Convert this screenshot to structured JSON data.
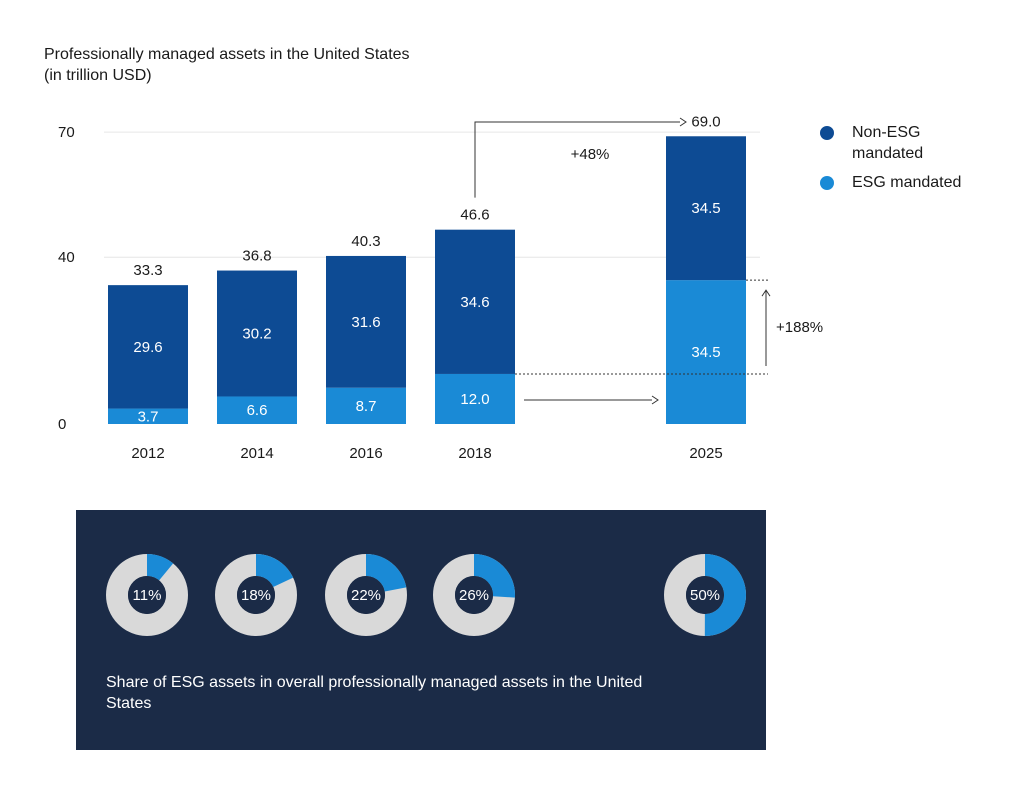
{
  "chart_data": [
    {
      "type": "bar",
      "title": "Professionally managed assets in the United States",
      "subtitle": "(in trillion USD)",
      "categories": [
        "2012",
        "2014",
        "2016",
        "2018",
        "2025"
      ],
      "stacked": true,
      "series": [
        {
          "name": "ESG mandated",
          "values": [
            3.7,
            6.6,
            8.7,
            12.0,
            34.5
          ],
          "color": "#1a8ad6"
        },
        {
          "name": "Non-ESG mandated",
          "values": [
            29.6,
            30.2,
            31.6,
            34.6,
            34.5
          ],
          "color": "#0d4b94"
        }
      ],
      "totals": [
        "33.3",
        "36.8",
        "40.3",
        "46.6",
        "69.0"
      ],
      "y_ticks": [
        0,
        40,
        70
      ],
      "ylim": [
        0,
        70
      ],
      "grid": true,
      "legend_position": "top-right",
      "annotations": [
        {
          "text": "+48%",
          "from": "2018",
          "to": "2025",
          "refers_to": "total"
        },
        {
          "text": "+188%",
          "from": "2018",
          "to": "2025",
          "refers_to": "ESG mandated"
        }
      ]
    },
    {
      "type": "pie",
      "variant": "donut",
      "caption": "Share of ESG assets in overall professionally managed assets in the United States",
      "categories": [
        "2012",
        "2014",
        "2016",
        "2018",
        "2025"
      ],
      "values": [
        11,
        18,
        22,
        26,
        50
      ],
      "labels": [
        "11%",
        "18%",
        "22%",
        "26%",
        "50%"
      ],
      "colors": {
        "share": "#1a8ad6",
        "rest": "#d9d9d9",
        "hole": "#1b2b47"
      }
    }
  ],
  "colors": {
    "non_esg": "#0d4b94",
    "esg": "#1a8ad6",
    "panel_bg": "#1b2b47",
    "gridline": "#e6e6e6"
  }
}
